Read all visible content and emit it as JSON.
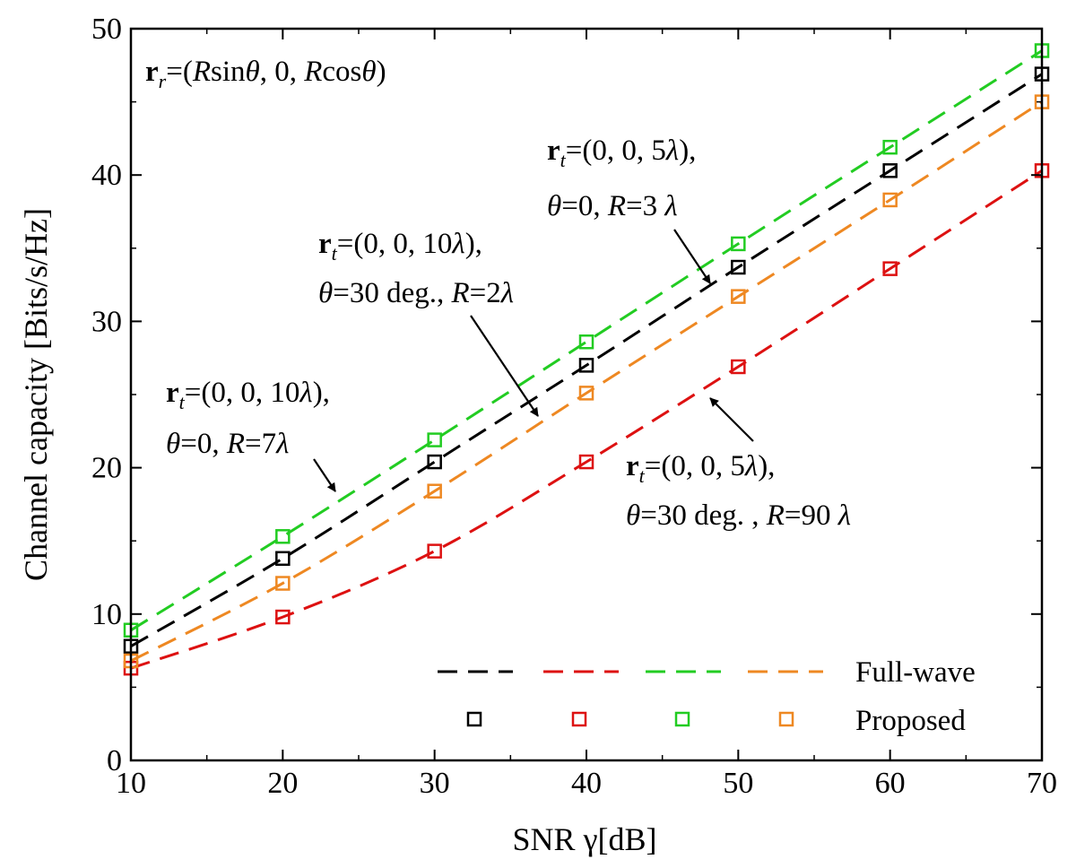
{
  "chart_data": {
    "type": "line",
    "xlabel": "SNR γ[dB]",
    "ylabel": "Channel capacity [Bits/s/Hz]",
    "xlim": [
      10,
      70
    ],
    "ylim": [
      0,
      50
    ],
    "xticks": [
      10,
      20,
      30,
      40,
      50,
      60,
      70
    ],
    "yticks": [
      0,
      10,
      20,
      30,
      40,
      50
    ],
    "grid": false,
    "legend_position": "bottom-right",
    "legend": {
      "line_label": "Full-wave",
      "marker_label": "Proposed"
    },
    "x": [
      10,
      20,
      30,
      40,
      50,
      60,
      70
    ],
    "series": [
      {
        "color": "#000000",
        "full_wave": [
          7.8,
          13.8,
          20.4,
          27.0,
          33.7,
          40.3,
          46.9
        ],
        "proposed": [
          7.8,
          13.8,
          20.4,
          27.0,
          33.7,
          40.3,
          46.9
        ]
      },
      {
        "color": "#dd1111",
        "full_wave": [
          6.3,
          9.8,
          14.3,
          20.4,
          26.9,
          33.6,
          40.3
        ],
        "proposed": [
          6.3,
          9.8,
          14.3,
          20.4,
          26.9,
          33.6,
          40.3
        ]
      },
      {
        "color": "#22cc22",
        "full_wave": [
          8.9,
          15.3,
          21.9,
          28.6,
          35.3,
          41.9,
          48.5
        ],
        "proposed": [
          8.9,
          15.3,
          21.9,
          28.6,
          35.3,
          41.9,
          48.5
        ]
      },
      {
        "color": "#ee8822",
        "full_wave": [
          6.8,
          12.1,
          18.4,
          25.1,
          31.7,
          38.3,
          45.0
        ],
        "proposed": [
          6.8,
          12.1,
          18.4,
          25.1,
          31.7,
          38.3,
          45.0
        ]
      }
    ],
    "annotations": [
      {
        "line1": "rr=(Rsinθ, 0, Rcosθ)",
        "line2": ""
      },
      {
        "line1": "rt=(0, 0, 5λ),",
        "line2": "θ=0, R=3 λ",
        "arrow_to": [
          48.0,
          32.5
        ]
      },
      {
        "line1": "rt=(0, 0, 10λ),",
        "line2": "θ=30 deg., R=2λ",
        "arrow_to": [
          37.0,
          23.4
        ]
      },
      {
        "line1": "rt=(0, 0, 10λ),",
        "line2": "θ=0, R=7λ",
        "arrow_to": [
          24.0,
          18.0
        ]
      },
      {
        "line1": "rt=(0, 0, 5λ),",
        "line2": "θ=30 deg. , R=90 λ",
        "arrow_to": [
          43.0,
          25.5
        ]
      }
    ]
  }
}
